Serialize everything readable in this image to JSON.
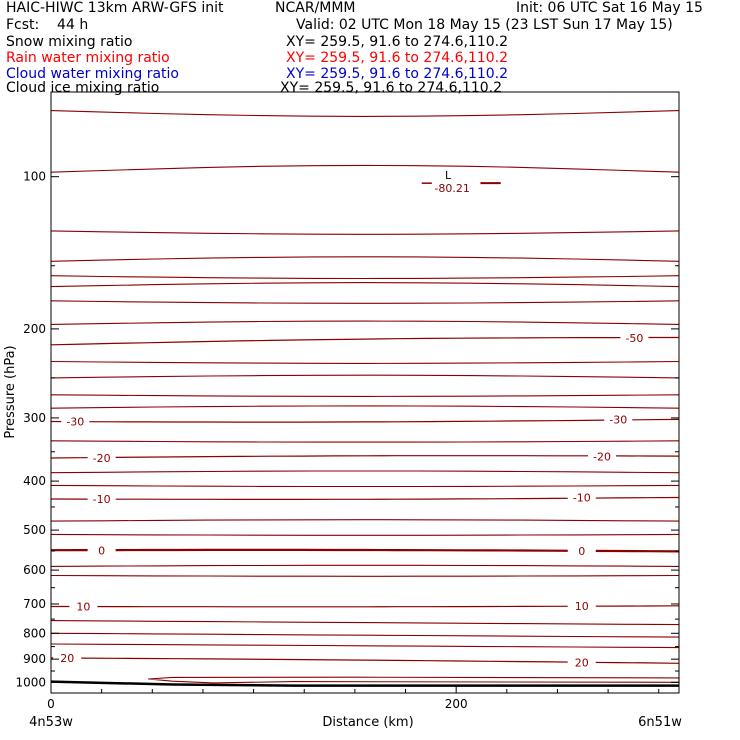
{
  "header": {
    "title": "HAIC-HIWC 13km ARW-GFS init",
    "org": "NCAR/MMM",
    "init": "Init: 06 UTC Sat 16 May 15",
    "fcst": "Fcst:    44 h",
    "valid": "Valid: 02 UTC Mon 18 May 15 (23 LST Sun 17 May 15)",
    "fields": [
      {
        "name": "Snow mixing ratio",
        "xy": "XY= 259.5, 91.6 to 274.6,110.2",
        "color": "#000000"
      },
      {
        "name": "Rain water mixing ratio",
        "xy": "XY= 259.5, 91.6 to 274.6,110.2",
        "color": "#ff0000"
      },
      {
        "name": "Cloud water mixing ratio",
        "xy": "XY= 259.5, 91.6 to 274.6,110.2",
        "color": "#0000cc"
      },
      {
        "name": "Cloud ice mixing ratio",
        "xy": "XY= 259.5, 91.6 to 274.6,110.2",
        "color": "#000000"
      }
    ]
  },
  "chart_data": {
    "type": "line",
    "xlabel": "Distance (km)",
    "ylabel": "Pressure (hPa)",
    "xlim": [
      0,
      310
    ],
    "ylim": [
      1050,
      68
    ],
    "x_ticks": [
      0,
      200
    ],
    "y_ticks": [
      100,
      200,
      300,
      400,
      500,
      600,
      700,
      800,
      900,
      1000
    ],
    "x_endpoint_labels": {
      "left": "4n53w",
      "right": "6n51w"
    },
    "contour_color": "#8b0000",
    "contours": [
      {
        "label": "-50",
        "p_left": 215,
        "p_right": 208,
        "label_x": [
          288
        ]
      },
      {
        "label": "-30",
        "p_left": 305,
        "p_right": 302,
        "label_x": [
          12,
          280
        ]
      },
      {
        "label": "-20",
        "p_left": 360,
        "p_right": 357,
        "label_x": [
          25,
          272
        ]
      },
      {
        "label": "-10",
        "p_left": 434,
        "p_right": 431,
        "label_x": [
          25,
          262
        ]
      },
      {
        "label": "0",
        "p_left": 548,
        "p_right": 551,
        "label_x": [
          25,
          262
        ]
      },
      {
        "label": "10",
        "p_left": 708,
        "p_right": 706,
        "label_x": [
          16,
          262
        ]
      },
      {
        "label": "20",
        "p_left": 895,
        "p_right": 917,
        "label_x": [
          8,
          262
        ]
      }
    ],
    "low_center": {
      "label": "L",
      "value": "-80.21",
      "x": 198,
      "p": 102
    },
    "ground_surface": {
      "x": [
        0,
        10,
        60,
        120,
        310
      ],
      "p": [
        997,
        999,
        1010,
        1015,
        1015
      ]
    }
  }
}
